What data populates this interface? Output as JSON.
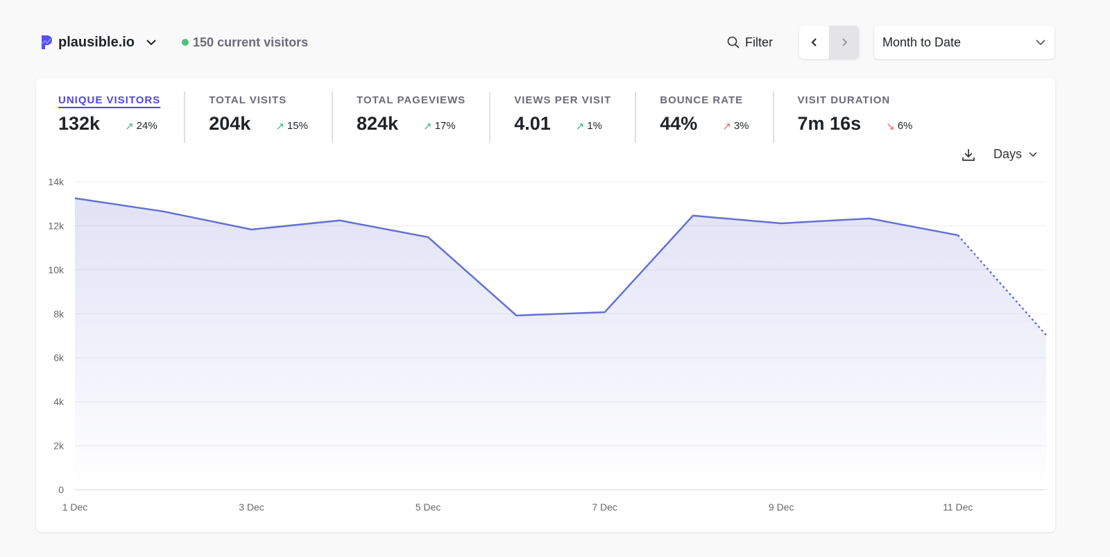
{
  "header": {
    "site": "plausible.io",
    "current_visitors": "150 current visitors",
    "filter_label": "Filter",
    "period": "Month to Date"
  },
  "stats": [
    {
      "label": "UNIQUE VISITORS",
      "value": "132k",
      "change": "24%",
      "direction": "up",
      "good": true,
      "active": true
    },
    {
      "label": "TOTAL VISITS",
      "value": "204k",
      "change": "15%",
      "direction": "up",
      "good": true
    },
    {
      "label": "TOTAL PAGEVIEWS",
      "value": "824k",
      "change": "17%",
      "direction": "up",
      "good": true
    },
    {
      "label": "VIEWS PER VISIT",
      "value": "4.01",
      "change": "1%",
      "direction": "up",
      "good": true
    },
    {
      "label": "BOUNCE RATE",
      "value": "44%",
      "change": "3%",
      "direction": "up",
      "good": false
    },
    {
      "label": "VISIT DURATION",
      "value": "7m 16s",
      "change": "6%",
      "direction": "down",
      "good": false
    }
  ],
  "interval": "Days",
  "colors": {
    "line": "#6570d0",
    "accent": "#4f46e5",
    "good": "#3fb37f",
    "bad": "#ef5f5f"
  },
  "chart_data": {
    "type": "line",
    "x": [
      "1 Dec",
      "2 Dec",
      "3 Dec",
      "4 Dec",
      "5 Dec",
      "6 Dec",
      "7 Dec",
      "8 Dec",
      "9 Dec",
      "10 Dec",
      "11 Dec",
      "12 Dec"
    ],
    "values": [
      13250,
      12650,
      11830,
      12240,
      11480,
      7920,
      8070,
      12460,
      12110,
      12330,
      11570,
      7030
    ],
    "incomplete_from": "11 Dec",
    "ylim": [
      0,
      14000
    ],
    "yticks": [
      "0",
      "2k",
      "4k",
      "6k",
      "8k",
      "10k",
      "12k",
      "14k"
    ],
    "xticks": [
      "1 Dec",
      "3 Dec",
      "5 Dec",
      "7 Dec",
      "9 Dec",
      "11 Dec"
    ],
    "grid": true
  }
}
